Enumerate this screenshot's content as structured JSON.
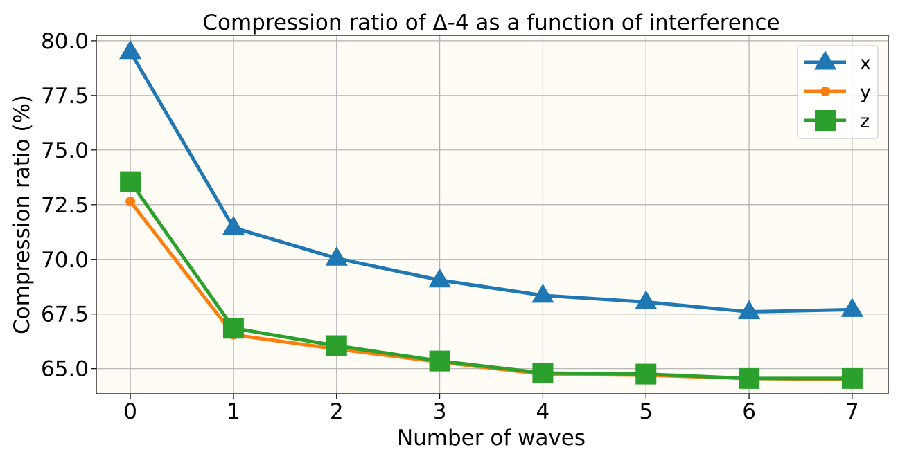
{
  "chart_data": {
    "type": "line",
    "title": "Compression ratio of Δ-4 as a function of interference",
    "xlabel": "Number of waves",
    "ylabel": "Compression ratio (%)",
    "x": [
      0,
      1,
      2,
      3,
      4,
      5,
      6,
      7
    ],
    "xlim": [
      -0.33,
      7.35
    ],
    "ylim": [
      63.85,
      80.25
    ],
    "xticks": [
      "0",
      "1",
      "2",
      "3",
      "4",
      "5",
      "6",
      "7"
    ],
    "yticks": [
      "65.0",
      "67.5",
      "70.0",
      "72.5",
      "75.0",
      "77.5",
      "80.0"
    ],
    "ytick_values": [
      65.0,
      67.5,
      70.0,
      72.5,
      75.0,
      77.5,
      80.0
    ],
    "grid": true,
    "legend_position": "top-right",
    "background": "#fefcf5",
    "series": [
      {
        "name": "x",
        "color": "#1f77b4",
        "marker": "triangle",
        "values": [
          79.5,
          71.45,
          70.05,
          69.05,
          68.35,
          68.05,
          67.6,
          67.7
        ]
      },
      {
        "name": "y",
        "color": "#ff7f0e",
        "marker": "circle",
        "values": [
          72.65,
          66.55,
          65.9,
          65.3,
          64.75,
          64.7,
          64.55,
          64.5
        ]
      },
      {
        "name": "z",
        "color": "#2ca02c",
        "marker": "square",
        "values": [
          73.55,
          66.85,
          66.05,
          65.35,
          64.8,
          64.75,
          64.55,
          64.55
        ]
      }
    ]
  }
}
